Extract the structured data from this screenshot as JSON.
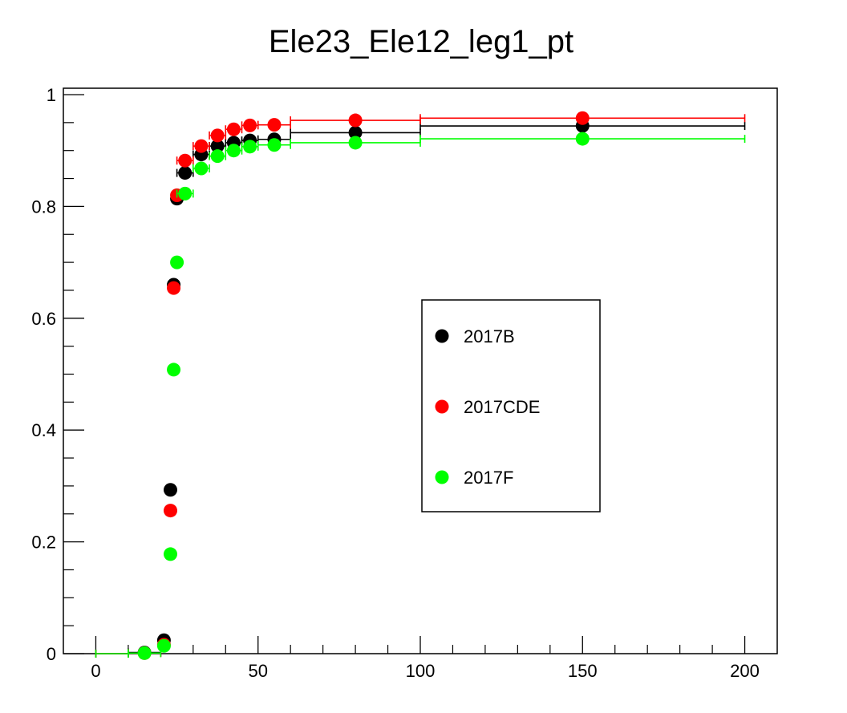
{
  "chart_data": {
    "type": "scatter",
    "title": "Ele23_Ele12_leg1_pt",
    "xlabel": "",
    "ylabel": "",
    "xlim": [
      -10,
      210
    ],
    "ylim": [
      0,
      1.0
    ],
    "x_ticks": [
      0,
      50,
      100,
      150,
      200
    ],
    "x_tick_labels": [
      "0",
      "50",
      "100",
      "150",
      "200"
    ],
    "y_ticks": [
      0,
      0.2,
      0.4,
      0.6,
      0.8,
      1.0
    ],
    "y_tick_labels": [
      "0",
      "0.2",
      "0.4",
      "0.6",
      "0.8",
      "1"
    ],
    "grid": false,
    "legend_position": "center-right",
    "series": [
      {
        "name": "2017B",
        "color": "#000000",
        "points": [
          {
            "x": 5,
            "xerr": 5,
            "y": 0.0
          },
          {
            "x": 15,
            "xerr": 5,
            "y": 0.002
          },
          {
            "x": 21,
            "xerr": 1,
            "y": 0.024
          },
          {
            "x": 23,
            "xerr": 1,
            "y": 0.293
          },
          {
            "x": 24,
            "xerr": 0.5,
            "y": 0.66
          },
          {
            "x": 25,
            "xerr": 0.5,
            "y": 0.814
          },
          {
            "x": 27.5,
            "xerr": 2.5,
            "y": 0.86
          },
          {
            "x": 32.5,
            "xerr": 2.5,
            "y": 0.893
          },
          {
            "x": 37.5,
            "xerr": 2.5,
            "y": 0.908
          },
          {
            "x": 42.5,
            "xerr": 2.5,
            "y": 0.914
          },
          {
            "x": 47.5,
            "xerr": 2.5,
            "y": 0.918
          },
          {
            "x": 55,
            "xerr": 5,
            "y": 0.92
          },
          {
            "x": 80,
            "xerr": 20,
            "y": 0.932
          },
          {
            "x": 150,
            "xerr": 50,
            "y": 0.944
          }
        ]
      },
      {
        "name": "2017CDE",
        "color": "#ff0000",
        "points": [
          {
            "x": 5,
            "xerr": 5,
            "y": 0.0
          },
          {
            "x": 15,
            "xerr": 5,
            "y": 0.001
          },
          {
            "x": 21,
            "xerr": 1,
            "y": 0.016
          },
          {
            "x": 23,
            "xerr": 1,
            "y": 0.256
          },
          {
            "x": 24,
            "xerr": 0.5,
            "y": 0.654
          },
          {
            "x": 25,
            "xerr": 0.5,
            "y": 0.82
          },
          {
            "x": 27.5,
            "xerr": 2.5,
            "y": 0.882
          },
          {
            "x": 32.5,
            "xerr": 2.5,
            "y": 0.908
          },
          {
            "x": 37.5,
            "xerr": 2.5,
            "y": 0.927
          },
          {
            "x": 42.5,
            "xerr": 2.5,
            "y": 0.938
          },
          {
            "x": 47.5,
            "xerr": 2.5,
            "y": 0.945
          },
          {
            "x": 55,
            "xerr": 5,
            "y": 0.946
          },
          {
            "x": 80,
            "xerr": 20,
            "y": 0.954
          },
          {
            "x": 150,
            "xerr": 50,
            "y": 0.958
          }
        ]
      },
      {
        "name": "2017F",
        "color": "#00ff00",
        "points": [
          {
            "x": 5,
            "xerr": 5,
            "y": 0.0
          },
          {
            "x": 15,
            "xerr": 5,
            "y": 0.001
          },
          {
            "x": 21,
            "xerr": 1,
            "y": 0.014
          },
          {
            "x": 23,
            "xerr": 1,
            "y": 0.178
          },
          {
            "x": 24,
            "xerr": 0.5,
            "y": 0.508
          },
          {
            "x": 25,
            "xerr": 0.5,
            "y": 0.7
          },
          {
            "x": 27.5,
            "xerr": 2.5,
            "y": 0.823
          },
          {
            "x": 32.5,
            "xerr": 2.5,
            "y": 0.868
          },
          {
            "x": 37.5,
            "xerr": 2.5,
            "y": 0.89
          },
          {
            "x": 42.5,
            "xerr": 2.5,
            "y": 0.9
          },
          {
            "x": 47.5,
            "xerr": 2.5,
            "y": 0.907
          },
          {
            "x": 55,
            "xerr": 5,
            "y": 0.91
          },
          {
            "x": 80,
            "xerr": 20,
            "y": 0.914
          },
          {
            "x": 150,
            "xerr": 50,
            "y": 0.921
          }
        ]
      }
    ]
  }
}
